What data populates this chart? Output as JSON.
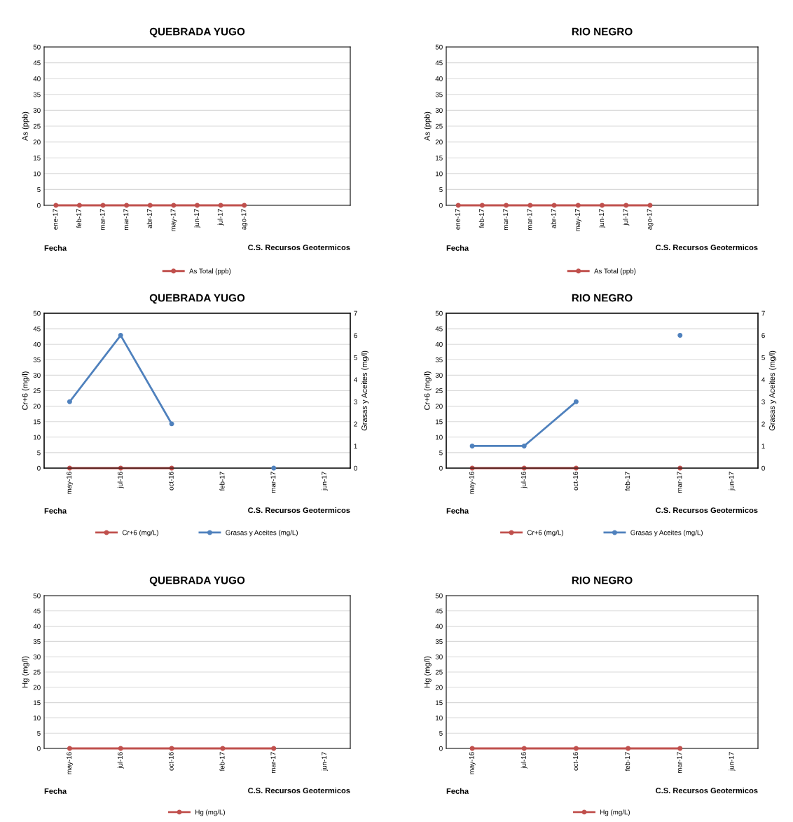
{
  "chart_data": [
    {
      "type": "line",
      "title": "QUEBRADA YUGO",
      "xlabel": "Fecha",
      "ylabel": "As (ppb)",
      "annotations": [
        "C.S. Recursos Geotermicos"
      ],
      "categories": [
        "ene-17",
        "feb-17",
        "mar-17",
        "mar-17",
        "abr-17",
        "may-17",
        "jun-17",
        "jul-17",
        "ago-17",
        null,
        null,
        null,
        null
      ],
      "series": [
        {
          "name": "As Total (ppb)",
          "color": "#c0504d",
          "values": [
            0,
            0,
            0,
            0,
            0,
            0,
            0,
            0,
            0,
            null,
            null,
            null,
            null
          ]
        }
      ],
      "ylim": [
        0,
        50
      ],
      "yticks": [
        0,
        5,
        10,
        15,
        20,
        25,
        30,
        35,
        40,
        45,
        50
      ],
      "grid": "y",
      "legend": "bottom",
      "marker": "circle",
      "line_style": "solid"
    },
    {
      "type": "line",
      "title": "RIO NEGRO",
      "xlabel": "Fecha",
      "ylabel": "As (ppb)",
      "annotations": [
        "C.S. Recursos Geotermicos"
      ],
      "categories": [
        "ene-17",
        "feb-17",
        "mar-17",
        "mar-17",
        "abr-17",
        "may-17",
        "jun-17",
        "jul-17",
        "ago-17",
        null,
        null,
        null,
        null
      ],
      "series": [
        {
          "name": "As Total (ppb)",
          "color": "#c0504d",
          "values": [
            0,
            0,
            0,
            0,
            0,
            0,
            0,
            0,
            0,
            null,
            null,
            null,
            null
          ]
        }
      ],
      "ylim": [
        0,
        50
      ],
      "yticks": [
        0,
        5,
        10,
        15,
        20,
        25,
        30,
        35,
        40,
        45,
        50
      ],
      "grid": "y",
      "legend": "bottom",
      "marker": "circle",
      "line_style": "solid"
    },
    {
      "type": "line",
      "title": "QUEBRADA YUGO",
      "xlabel": "Fecha",
      "ylabel": "Cr+6 (mg/l)",
      "y2label": "Grasas y Aceites (mg/l)",
      "annotations": [
        "C.S. Recursos Geotermicos"
      ],
      "categories": [
        "may-16",
        "jul-16",
        "oct-16",
        "feb-17",
        "mar-17",
        "jun-17"
      ],
      "series": [
        {
          "name": "Cr+6 (mg/L)",
          "color": "#c0504d",
          "values": [
            0,
            0,
            0,
            null,
            null,
            null
          ]
        },
        {
          "name": "Grasas y Aceites (mg/L)",
          "color": "#4f81bd",
          "axis": "y2",
          "values": [
            3,
            6,
            2,
            null,
            0,
            null
          ]
        }
      ],
      "ylim": [
        0,
        50
      ],
      "yticks": [
        0,
        5,
        10,
        15,
        20,
        25,
        30,
        35,
        40,
        45,
        50
      ],
      "y2lim": [
        0,
        7
      ],
      "y2ticks": [
        0,
        1,
        2,
        3,
        4,
        5,
        6,
        7
      ],
      "grid": "y",
      "legend": "bottom",
      "marker": "circle",
      "line_style": "solid"
    },
    {
      "type": "line",
      "title": "RIO NEGRO",
      "xlabel": "Fecha",
      "ylabel": "Cr+6 (mg/l)",
      "y2label": "Grasas y Aceites (mg/l)",
      "annotations": [
        "C.S. Recursos Geotermicos"
      ],
      "categories": [
        "may-16",
        "jul-16",
        "oct-16",
        "feb-17",
        "mar-17",
        "jun-17"
      ],
      "series": [
        {
          "name": "Cr+6 (mg/L)",
          "color": "#c0504d",
          "values": [
            0,
            0,
            0,
            null,
            0,
            null
          ]
        },
        {
          "name": "Grasas y Aceites (mg/L)",
          "color": "#4f81bd",
          "axis": "y2",
          "values": [
            1,
            1,
            3,
            null,
            6,
            null
          ]
        }
      ],
      "ylim": [
        0,
        50
      ],
      "yticks": [
        0,
        5,
        10,
        15,
        20,
        25,
        30,
        35,
        40,
        45,
        50
      ],
      "y2lim": [
        0,
        7
      ],
      "y2ticks": [
        0,
        1,
        2,
        3,
        4,
        5,
        6,
        7
      ],
      "grid": "y",
      "legend": "bottom",
      "marker": "circle",
      "line_style": "solid"
    },
    {
      "type": "line",
      "title": "QUEBRADA YUGO",
      "xlabel": "Fecha",
      "ylabel": "Hg (mg/l)",
      "annotations": [
        "C.S. Recursos Geotermicos"
      ],
      "categories": [
        "may-16",
        "jul-16",
        "oct-16",
        "feb-17",
        "mar-17",
        "jun-17"
      ],
      "series": [
        {
          "name": "Hg (mg/L)",
          "color": "#c0504d",
          "values": [
            0,
            0,
            0,
            0,
            0,
            null
          ]
        }
      ],
      "ylim": [
        0,
        50
      ],
      "yticks": [
        0,
        5,
        10,
        15,
        20,
        25,
        30,
        35,
        40,
        45,
        50
      ],
      "grid": "y",
      "legend": "bottom",
      "marker": "circle",
      "line_style": "solid"
    },
    {
      "type": "line",
      "title": "RIO NEGRO",
      "xlabel": "Fecha",
      "ylabel": "Hg (mg/l)",
      "annotations": [
        "C.S. Recursos Geotermicos"
      ],
      "categories": [
        "may-16",
        "jul-16",
        "oct-16",
        "feb-17",
        "mar-17",
        "jun-17"
      ],
      "series": [
        {
          "name": "Hg (mg/L)",
          "color": "#c0504d",
          "values": [
            0,
            0,
            0,
            0,
            0,
            null
          ]
        }
      ],
      "ylim": [
        0,
        50
      ],
      "yticks": [
        0,
        5,
        10,
        15,
        20,
        25,
        30,
        35,
        40,
        45,
        50
      ],
      "grid": "y",
      "legend": "bottom",
      "marker": "circle",
      "line_style": "solid"
    }
  ]
}
